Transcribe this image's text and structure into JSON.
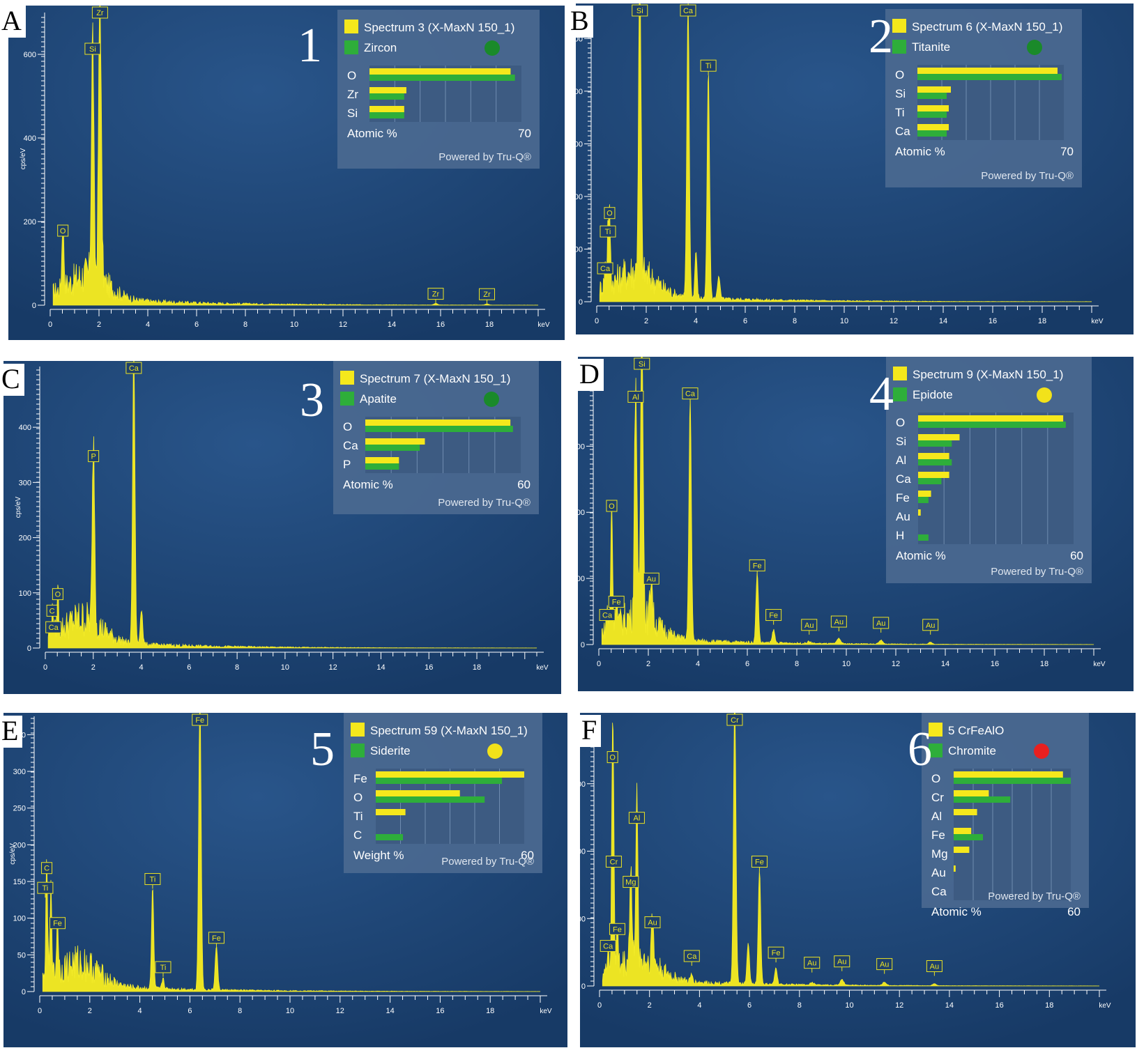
{
  "chart_data": [
    {
      "type": "line",
      "panel_letter": "A",
      "panel_number": "1",
      "xlabel": "keV",
      "ylabel": "cps/eV",
      "xlim": [
        0,
        20
      ],
      "ylim": [
        0,
        700
      ],
      "x_ticks": [
        "0",
        "2",
        "4",
        "6",
        "8",
        "10",
        "12",
        "14",
        "16",
        "18"
      ],
      "y_ticks": [
        "0",
        "200",
        "400",
        "600"
      ],
      "y_tick_values": [
        0,
        200,
        400,
        600
      ],
      "peaks": [
        {
          "x": 0.52,
          "y": 155,
          "w": 0.06
        },
        {
          "x": 1.74,
          "y": 590,
          "w": 0.07
        },
        {
          "x": 2.04,
          "y": 680,
          "w": 0.08
        },
        {
          "x": 15.8,
          "y": 4,
          "w": 0.1
        },
        {
          "x": 17.9,
          "y": 3,
          "w": 0.1
        }
      ],
      "peak_labels": [
        {
          "text": "O",
          "x": 0.52,
          "y": 155
        },
        {
          "text": "Si",
          "x": 1.74,
          "y": 590
        },
        {
          "text": "Zr",
          "x": 2.04,
          "y": 680
        },
        {
          "text": "Zr",
          "x": 15.8,
          "y": 4
        },
        {
          "text": "Zr",
          "x": 17.9,
          "y": 3
        }
      ],
      "legend": {
        "spectrum": "Spectrum 3 (X-MaxN 150_1)",
        "mineral": "Zircon",
        "match_color": "#1a8a2a",
        "axis_label": "Atomic %",
        "axis_max_label": "70",
        "max": 70,
        "footer": "Powered by Tru-Q®",
        "elements": [
          {
            "symbol": "O",
            "measured": 65,
            "reference": 67
          },
          {
            "symbol": "Zr",
            "measured": 17,
            "reference": 16
          },
          {
            "symbol": "Si",
            "measured": 16,
            "reference": 16
          }
        ]
      }
    },
    {
      "type": "line",
      "panel_letter": "B",
      "panel_number": "2",
      "xlabel": "keV",
      "ylabel": "cps/eV",
      "xlim": [
        0,
        20
      ],
      "ylim": [
        0,
        560
      ],
      "x_ticks": [
        "0",
        "2",
        "4",
        "6",
        "8",
        "10",
        "12",
        "14",
        "16",
        "18"
      ],
      "y_ticks": [
        "0",
        "100",
        "200",
        "300",
        "400",
        "500"
      ],
      "y_tick_values": [
        0,
        100,
        200,
        300,
        400,
        500
      ],
      "peaks": [
        {
          "x": 0.34,
          "y": 40,
          "w": 0.05
        },
        {
          "x": 0.45,
          "y": 105,
          "w": 0.04
        },
        {
          "x": 0.52,
          "y": 130,
          "w": 0.05
        },
        {
          "x": 1.74,
          "y": 580,
          "w": 0.07
        },
        {
          "x": 3.69,
          "y": 560,
          "w": 0.07
        },
        {
          "x": 4.01,
          "y": 90,
          "w": 0.06
        },
        {
          "x": 4.51,
          "y": 430,
          "w": 0.07
        },
        {
          "x": 4.93,
          "y": 45,
          "w": 0.07
        }
      ],
      "peak_labels": [
        {
          "text": "O",
          "x": 0.52,
          "y": 150
        },
        {
          "text": "Ti",
          "x": 0.45,
          "y": 115
        },
        {
          "text": "Ca",
          "x": 0.34,
          "y": 45
        },
        {
          "text": "Si",
          "x": 1.74,
          "y": 580
        },
        {
          "text": "Ca",
          "x": 3.69,
          "y": 560
        },
        {
          "text": "Ti",
          "x": 4.51,
          "y": 430
        }
      ],
      "legend": {
        "spectrum": "Spectrum 6 (X-MaxN 150_1)",
        "mineral": "Titanite",
        "match_color": "#1a8a2a",
        "axis_label": "Atomic %",
        "axis_max_label": "70",
        "max": 70,
        "footer": "Powered by Tru-Q®",
        "elements": [
          {
            "symbol": "O",
            "measured": 67,
            "reference": 69
          },
          {
            "symbol": "Si",
            "measured": 16,
            "reference": 14
          },
          {
            "symbol": "Ti",
            "measured": 15,
            "reference": 14
          },
          {
            "symbol": "Ca",
            "measured": 15,
            "reference": 14
          }
        ]
      }
    },
    {
      "type": "line",
      "panel_letter": "C",
      "panel_number": "3",
      "xlabel": "keV",
      "ylabel": "cps/eV",
      "xlim": [
        0,
        20.5
      ],
      "ylim": [
        0,
        510
      ],
      "x_ticks": [
        "0",
        "2",
        "4",
        "6",
        "8",
        "10",
        "12",
        "14",
        "16",
        "18"
      ],
      "y_ticks": [
        "0",
        "100",
        "200",
        "300",
        "400"
      ],
      "y_tick_values": [
        0,
        100,
        200,
        300,
        400
      ],
      "peaks": [
        {
          "x": 0.28,
          "y": 30,
          "w": 0.05
        },
        {
          "x": 0.34,
          "y": 25,
          "w": 0.05
        },
        {
          "x": 0.52,
          "y": 80,
          "w": 0.05
        },
        {
          "x": 2.01,
          "y": 330,
          "w": 0.07
        },
        {
          "x": 3.69,
          "y": 530,
          "w": 0.07
        },
        {
          "x": 4.01,
          "y": 65,
          "w": 0.07
        }
      ],
      "peak_labels": [
        {
          "text": "O",
          "x": 0.52,
          "y": 80
        },
        {
          "text": "C",
          "x": 0.28,
          "y": 50
        },
        {
          "text": "Ca",
          "x": 0.34,
          "y": 20
        },
        {
          "text": "P",
          "x": 2.01,
          "y": 330
        },
        {
          "text": "Ca",
          "x": 3.69,
          "y": 530
        }
      ],
      "legend": {
        "spectrum": "Spectrum 7 (X-MaxN 150_1)",
        "mineral": "Apatite",
        "match_color": "#1a8a2a",
        "axis_label": "Atomic %",
        "axis_max_label": "60",
        "max": 60,
        "footer": "Powered by Tru-Q®",
        "elements": [
          {
            "symbol": "O",
            "measured": 56,
            "reference": 57
          },
          {
            "symbol": "Ca",
            "measured": 23,
            "reference": 21
          },
          {
            "symbol": "P",
            "measured": 13,
            "reference": 13
          }
        ]
      }
    },
    {
      "type": "line",
      "panel_letter": "D",
      "panel_number": "4",
      "xlabel": "keV",
      "ylabel": "cps/eV",
      "xlim": [
        0,
        20
      ],
      "ylim": [
        0,
        430
      ],
      "x_ticks": [
        "0",
        "2",
        "4",
        "6",
        "8",
        "10",
        "12",
        "14",
        "16",
        "18"
      ],
      "y_ticks": [
        "0",
        "100",
        "200",
        "300",
        "400"
      ],
      "y_tick_values": [
        0,
        100,
        200,
        300,
        400
      ],
      "peaks": [
        {
          "x": 0.34,
          "y": 35,
          "w": 0.05
        },
        {
          "x": 0.52,
          "y": 195,
          "w": 0.05
        },
        {
          "x": 0.71,
          "y": 50,
          "w": 0.05
        },
        {
          "x": 1.49,
          "y": 360,
          "w": 0.07
        },
        {
          "x": 1.74,
          "y": 470,
          "w": 0.07
        },
        {
          "x": 2.12,
          "y": 70,
          "w": 0.07
        },
        {
          "x": 3.69,
          "y": 365,
          "w": 0.07
        },
        {
          "x": 6.4,
          "y": 105,
          "w": 0.07
        },
        {
          "x": 7.06,
          "y": 20,
          "w": 0.07
        },
        {
          "x": 8.5,
          "y": 3,
          "w": 0.1
        },
        {
          "x": 9.7,
          "y": 8,
          "w": 0.1
        },
        {
          "x": 11.4,
          "y": 6,
          "w": 0.1
        },
        {
          "x": 13.4,
          "y": 3,
          "w": 0.1
        }
      ],
      "peak_labels": [
        {
          "text": "O",
          "x": 0.52,
          "y": 195
        },
        {
          "text": "Fe",
          "x": 0.71,
          "y": 50
        },
        {
          "text": "Ca",
          "x": 0.34,
          "y": 30
        },
        {
          "text": "Al",
          "x": 1.49,
          "y": 360
        },
        {
          "text": "Si",
          "x": 1.74,
          "y": 470
        },
        {
          "text": "Au",
          "x": 2.12,
          "y": 85
        },
        {
          "text": "Ca",
          "x": 3.69,
          "y": 365
        },
        {
          "text": "Fe",
          "x": 6.4,
          "y": 105
        },
        {
          "text": "Fe",
          "x": 7.06,
          "y": 30
        },
        {
          "text": "Au",
          "x": 8.5,
          "y": 15
        },
        {
          "text": "Au",
          "x": 9.7,
          "y": 20
        },
        {
          "text": "Au",
          "x": 11.4,
          "y": 18
        },
        {
          "text": "Au",
          "x": 13.4,
          "y": 15
        }
      ],
      "legend": {
        "spectrum": "Spectrum 9 (X-MaxN 150_1)",
        "mineral": "Epidote",
        "match_color": "#f2e21a",
        "axis_label": "Atomic %",
        "axis_max_label": "60",
        "max": 60,
        "footer": "Powered by Tru-Q®",
        "elements": [
          {
            "symbol": "O",
            "measured": 56,
            "reference": 57
          },
          {
            "symbol": "Si",
            "measured": 16,
            "reference": 13
          },
          {
            "symbol": "Al",
            "measured": 12,
            "reference": 13
          },
          {
            "symbol": "Ca",
            "measured": 12,
            "reference": 9
          },
          {
            "symbol": "Fe",
            "measured": 5,
            "reference": 4
          },
          {
            "symbol": "Au",
            "measured": 1,
            "reference": 0
          },
          {
            "symbol": "H",
            "measured": 0,
            "reference": 4
          }
        ]
      }
    },
    {
      "type": "line",
      "panel_letter": "E",
      "panel_number": "5",
      "xlabel": "keV",
      "ylabel": "cps/eV",
      "xlim": [
        0,
        20
      ],
      "ylim": [
        0,
        375
      ],
      "x_ticks": [
        "0",
        "2",
        "4",
        "6",
        "8",
        "10",
        "12",
        "14",
        "16",
        "18"
      ],
      "y_ticks": [
        "0",
        "50",
        "100",
        "150",
        "200",
        "250",
        "300",
        "350"
      ],
      "y_tick_values": [
        0,
        50,
        100,
        150,
        200,
        250,
        300,
        350
      ],
      "peaks": [
        {
          "x": 0.28,
          "y": 155,
          "w": 0.05
        },
        {
          "x": 0.45,
          "y": 120,
          "w": 0.05
        },
        {
          "x": 0.71,
          "y": 80,
          "w": 0.05
        },
        {
          "x": 4.51,
          "y": 140,
          "w": 0.06
        },
        {
          "x": 4.93,
          "y": 15,
          "w": 0.06
        },
        {
          "x": 6.4,
          "y": 400,
          "w": 0.07
        },
        {
          "x": 7.06,
          "y": 60,
          "w": 0.07
        }
      ],
      "peak_labels": [
        {
          "text": "C",
          "x": 0.28,
          "y": 155
        },
        {
          "text": "Ti",
          "x": 0.22,
          "y": 128
        },
        {
          "text": "Fe",
          "x": 0.71,
          "y": 80
        },
        {
          "text": "Ti",
          "x": 4.51,
          "y": 140
        },
        {
          "text": "Ti",
          "x": 4.93,
          "y": 20
        },
        {
          "text": "Fe",
          "x": 6.4,
          "y": 400
        },
        {
          "text": "Fe",
          "x": 7.06,
          "y": 60
        }
      ],
      "legend": {
        "spectrum": "Spectrum 59 (X-MaxN 150_1)",
        "mineral": "Siderite",
        "match_color": "#f2e21a",
        "axis_label": "Weight %",
        "axis_max_label": "60",
        "max": 60,
        "footer": "Powered by Tru-Q®",
        "elements": [
          {
            "symbol": "Fe",
            "measured": 60,
            "reference": 51
          },
          {
            "symbol": "O",
            "measured": 34,
            "reference": 44
          },
          {
            "symbol": "Ti",
            "measured": 12,
            "reference": 0
          },
          {
            "symbol": "C",
            "measured": 0,
            "reference": 11
          }
        ]
      }
    },
    {
      "type": "line",
      "panel_letter": "F",
      "panel_number": "6",
      "xlabel": "keV",
      "ylabel": "cps/eV",
      "xlim": [
        0,
        20
      ],
      "ylim": [
        0,
        400
      ],
      "x_ticks": [
        "0",
        "2",
        "4",
        "6",
        "8",
        "10",
        "12",
        "14",
        "16",
        "18"
      ],
      "y_ticks": [
        "0",
        "100",
        "200",
        "300"
      ],
      "y_tick_values": [
        0,
        100,
        200,
        300
      ],
      "peaks": [
        {
          "x": 0.34,
          "y": 40,
          "w": 0.05
        },
        {
          "x": 0.52,
          "y": 325,
          "w": 0.05
        },
        {
          "x": 0.57,
          "y": 150,
          "w": 0.04
        },
        {
          "x": 0.71,
          "y": 60,
          "w": 0.05
        },
        {
          "x": 1.25,
          "y": 140,
          "w": 0.06
        },
        {
          "x": 1.49,
          "y": 235,
          "w": 0.06
        },
        {
          "x": 2.12,
          "y": 65,
          "w": 0.07
        },
        {
          "x": 3.69,
          "y": 10,
          "w": 0.07
        },
        {
          "x": 5.41,
          "y": 420,
          "w": 0.07
        },
        {
          "x": 5.95,
          "y": 60,
          "w": 0.07
        },
        {
          "x": 6.4,
          "y": 170,
          "w": 0.07
        },
        {
          "x": 7.06,
          "y": 25,
          "w": 0.07
        },
        {
          "x": 8.5,
          "y": 4,
          "w": 0.1
        },
        {
          "x": 9.7,
          "y": 8,
          "w": 0.1
        },
        {
          "x": 11.4,
          "y": 5,
          "w": 0.1
        },
        {
          "x": 13.4,
          "y": 3,
          "w": 0.1
        }
      ],
      "peak_labels": [
        {
          "text": "O",
          "x": 0.52,
          "y": 325
        },
        {
          "text": "Cr",
          "x": 0.57,
          "y": 170
        },
        {
          "text": "Fe",
          "x": 0.71,
          "y": 70
        },
        {
          "text": "Ca",
          "x": 0.34,
          "y": 45
        },
        {
          "text": "Mg",
          "x": 1.25,
          "y": 140
        },
        {
          "text": "Al",
          "x": 1.49,
          "y": 235
        },
        {
          "text": "Au",
          "x": 2.12,
          "y": 80
        },
        {
          "text": "Ca",
          "x": 3.69,
          "y": 30
        },
        {
          "text": "Cr",
          "x": 5.41,
          "y": 420
        },
        {
          "text": "Fe",
          "x": 6.4,
          "y": 170
        },
        {
          "text": "Fe",
          "x": 7.06,
          "y": 35
        },
        {
          "text": "Au",
          "x": 8.5,
          "y": 20
        },
        {
          "text": "Au",
          "x": 9.7,
          "y": 22
        },
        {
          "text": "Au",
          "x": 11.4,
          "y": 18
        },
        {
          "text": "Au",
          "x": 13.4,
          "y": 15
        }
      ],
      "legend": {
        "spectrum": "5 CrFeAlO",
        "mineral": "Chromite",
        "match_color": "#e82020",
        "axis_label": "Atomic %",
        "axis_max_label": "60",
        "max": 60,
        "footer": "Powered by Tru-Q®",
        "elements": [
          {
            "symbol": "O",
            "measured": 56,
            "reference": 60
          },
          {
            "symbol": "Cr",
            "measured": 18,
            "reference": 29
          },
          {
            "symbol": "Al",
            "measured": 12,
            "reference": 0
          },
          {
            "symbol": "Fe",
            "measured": 9,
            "reference": 15
          },
          {
            "symbol": "Mg",
            "measured": 8,
            "reference": 0
          },
          {
            "symbol": "Au",
            "measured": 1,
            "reference": 0
          },
          {
            "symbol": "Ca",
            "measured": 0,
            "reference": 0
          }
        ]
      }
    }
  ]
}
